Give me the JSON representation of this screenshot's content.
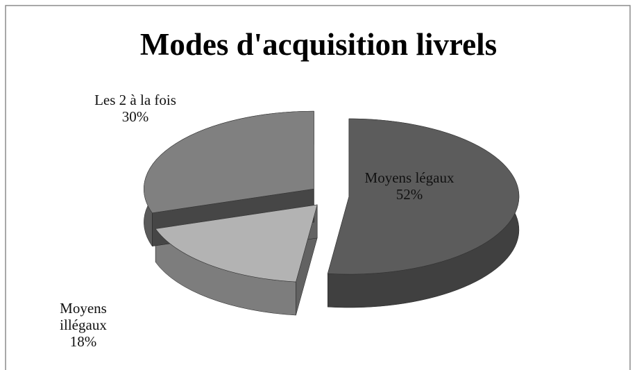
{
  "chart_data": {
    "type": "pie",
    "title": "Modes d'acquisition livrels",
    "categories": [
      "Moyens légaux",
      "Moyens illégaux",
      "Les 2 à la fois"
    ],
    "values": [
      52,
      18,
      30
    ],
    "value_labels": [
      "52%",
      "18%",
      "30%"
    ],
    "colors": [
      "#5c5c5c",
      "#b3b3b3",
      "#808080"
    ]
  }
}
